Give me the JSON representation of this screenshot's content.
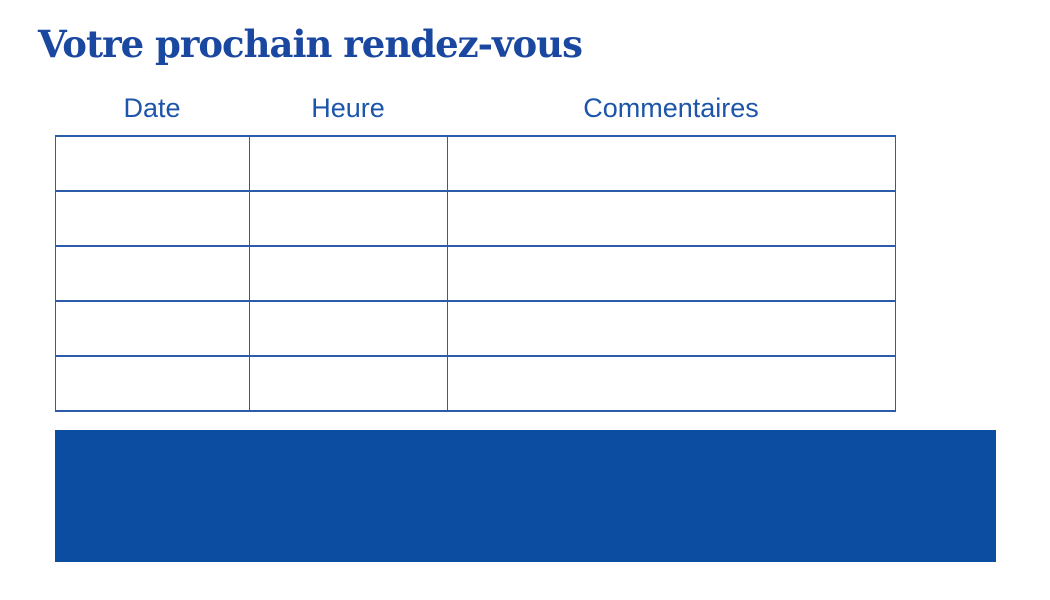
{
  "title": "Votre prochain rendez-vous",
  "table": {
    "columns": [
      {
        "label": "Date"
      },
      {
        "label": "Heure"
      },
      {
        "label": "Commentaires"
      }
    ],
    "rows": [
      [
        "",
        "",
        ""
      ],
      [
        "",
        "",
        ""
      ],
      [
        "",
        "",
        ""
      ],
      [
        "",
        "",
        ""
      ],
      [
        "",
        "",
        ""
      ]
    ]
  },
  "footer_block": {
    "label": ""
  },
  "colors": {
    "title-blue": "#1A479F",
    "header-blue": "#1C55A9",
    "table-border-blue": "#2B5BA9",
    "block-blue": "#0C4DA2",
    "page-bg": "#FFFFFF"
  }
}
